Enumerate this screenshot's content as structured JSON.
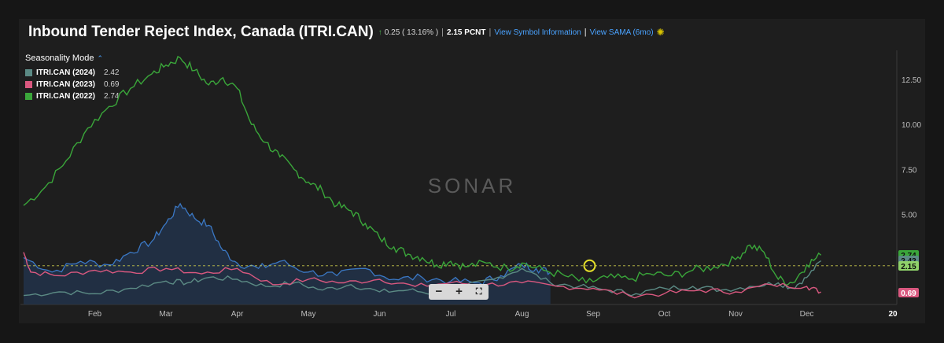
{
  "header": {
    "title": "Inbound Tender Reject Index, Canada (ITRI.CAN)",
    "change_arrow": "↑",
    "change": "0.25 ( 13.16% )",
    "value": "2.15 PCNT",
    "link_symbol": "View Symbol Information",
    "link_sama": "View SAMA (6mo)",
    "sama_icon": "sama-icon"
  },
  "legend": {
    "mode_label": "Seasonality Mode",
    "items": [
      {
        "name": "ITRI.CAN (2024)",
        "value": "2.42",
        "color": "#5b8a84"
      },
      {
        "name": "ITRI.CAN (2023)",
        "value": "0.69",
        "color": "#d9587f"
      },
      {
        "name": "ITRI.CAN (2022)",
        "value": "2.74",
        "color": "#3aa63a"
      }
    ]
  },
  "watermark": "SONAR",
  "zoom": {
    "minus": "−",
    "plus": "+",
    "fullscreen": "⛶"
  },
  "chart_data": {
    "type": "line",
    "x_labels": [
      "Feb",
      "Mar",
      "Apr",
      "May",
      "Jun",
      "Jul",
      "Aug",
      "Sep",
      "Oct",
      "Nov",
      "Dec",
      "20"
    ],
    "y_ticks": [
      "5.00",
      "7.50",
      "10.00",
      "12.50"
    ],
    "ylim": [
      0,
      14
    ],
    "reference_line": 2.15,
    "price_tags": [
      {
        "label": "2.74",
        "value": 2.74,
        "color": "#3aa63a"
      },
      {
        "label": "2.42",
        "value": 2.42,
        "color": "#5b8a84"
      },
      {
        "label": "2.15",
        "value": 2.15,
        "color": "#8fd16a"
      },
      {
        "label": "0.69",
        "value": 0.69,
        "color": "#d9587f"
      }
    ],
    "series": [
      {
        "name": "ITRI.CAN (2022)",
        "color": "#3aa63a",
        "x": [
          0,
          0.3,
          0.6,
          0.9,
          1.2,
          1.5,
          1.8,
          2.0,
          2.2,
          2.4,
          2.6,
          2.8,
          3.0,
          3.2,
          3.4,
          3.6,
          3.8,
          4.0,
          4.2,
          4.4,
          4.6,
          4.8,
          5.0,
          5.2,
          5.4,
          5.6,
          5.8,
          6.0,
          6.2,
          6.5,
          6.8,
          7.0,
          7.3,
          7.6,
          7.9,
          8.2,
          8.5,
          8.8,
          9.1,
          9.4,
          9.7,
          10.0,
          10.2,
          10.4,
          10.6,
          10.8,
          11.0,
          11.2
        ],
        "values": [
          5.5,
          6.5,
          8.0,
          9.8,
          11.0,
          12.0,
          12.8,
          13.3,
          13.7,
          13.0,
          12.2,
          12.6,
          12.0,
          10.0,
          9.0,
          8.2,
          7.5,
          6.8,
          6.3,
          5.5,
          5.2,
          4.5,
          3.7,
          3.2,
          2.8,
          2.6,
          2.2,
          2.4,
          2.1,
          2.3,
          2.0,
          2.3,
          1.9,
          1.6,
          1.2,
          1.5,
          1.4,
          1.7,
          1.6,
          1.9,
          2.1,
          2.5,
          3.3,
          2.9,
          1.4,
          1.2,
          2.2,
          2.74
        ]
      },
      {
        "name": "ITRI.CAN (2024)",
        "color": "#5b8a84",
        "x": [
          0,
          0.5,
          1.0,
          1.5,
          2.0,
          2.3,
          2.6,
          3.0,
          3.4,
          3.8,
          4.2,
          4.6,
          5.0,
          5.4,
          5.8,
          6.2,
          6.6,
          7.0,
          7.4,
          7.8,
          8.2,
          8.6,
          9.0,
          9.4,
          9.8,
          10.2,
          10.6,
          10.8,
          11.0,
          11.2
        ],
        "values": [
          0.5,
          0.7,
          0.6,
          0.9,
          1.3,
          1.2,
          1.5,
          1.4,
          1.0,
          1.2,
          0.8,
          1.1,
          0.7,
          0.8,
          0.6,
          1.0,
          1.4,
          2.0,
          1.2,
          1.0,
          0.8,
          0.6,
          0.9,
          1.0,
          0.8,
          1.0,
          1.2,
          0.9,
          1.5,
          2.42
        ]
      },
      {
        "name": "ITRI.CAN (2023)",
        "color": "#d9587f",
        "x": [
          0,
          0.1,
          0.5,
          1.0,
          1.5,
          2.0,
          2.5,
          3.0,
          3.5,
          4.0,
          4.5,
          5.0,
          5.5,
          6.0,
          6.5,
          7.0,
          7.5,
          8.0,
          8.5,
          9.0,
          9.5,
          10.0,
          10.5,
          11.0,
          11.2
        ],
        "values": [
          2.9,
          1.8,
          1.6,
          1.9,
          1.8,
          2.0,
          1.7,
          2.0,
          1.1,
          1.4,
          1.2,
          1.4,
          1.0,
          1.2,
          1.1,
          1.2,
          1.0,
          0.9,
          0.5,
          0.6,
          0.8,
          0.7,
          1.1,
          1.0,
          0.69
        ]
      },
      {
        "name": "area",
        "color": "#3b78c4",
        "x": [
          0,
          0.4,
          0.8,
          1.2,
          1.5,
          1.8,
          2.0,
          2.2,
          2.4,
          2.6,
          2.8,
          3.0,
          3.3,
          3.6,
          4.0,
          4.4,
          4.8,
          5.2,
          5.6,
          6.0,
          6.4,
          6.7,
          7.0,
          7.2,
          7.4
        ],
        "values": [
          2.6,
          1.8,
          2.4,
          2.2,
          2.9,
          3.5,
          4.5,
          5.6,
          4.8,
          4.4,
          3.0,
          2.3,
          2.0,
          2.4,
          1.8,
          1.6,
          2.0,
          1.4,
          1.5,
          1.3,
          1.2,
          1.6,
          2.2,
          2.0,
          1.8
        ]
      }
    ]
  }
}
